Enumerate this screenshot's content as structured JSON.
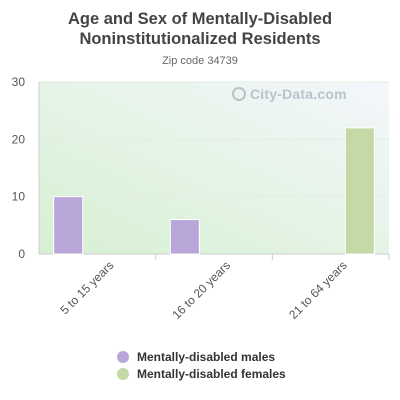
{
  "chart_data": {
    "type": "bar",
    "title_lines": [
      "Age and Sex of Mentally-Disabled",
      "Noninstitutionalized Residents"
    ],
    "subtitle": "Zip code 34739",
    "categories": [
      "5 to 15 years",
      "16 to 20 years",
      "21 to 64 years"
    ],
    "series": [
      {
        "name": "Mentally-disabled males",
        "values": [
          10,
          6,
          null
        ],
        "color": "#b9a6d8"
      },
      {
        "name": "Mentally-disabled females",
        "values": [
          null,
          null,
          22
        ],
        "color": "#c5d9a6"
      }
    ],
    "ylim": [
      0,
      30
    ],
    "yticks": [
      0,
      10,
      20,
      30
    ],
    "grid": true,
    "legend_position": "bottom"
  },
  "watermark": "City-Data.com"
}
